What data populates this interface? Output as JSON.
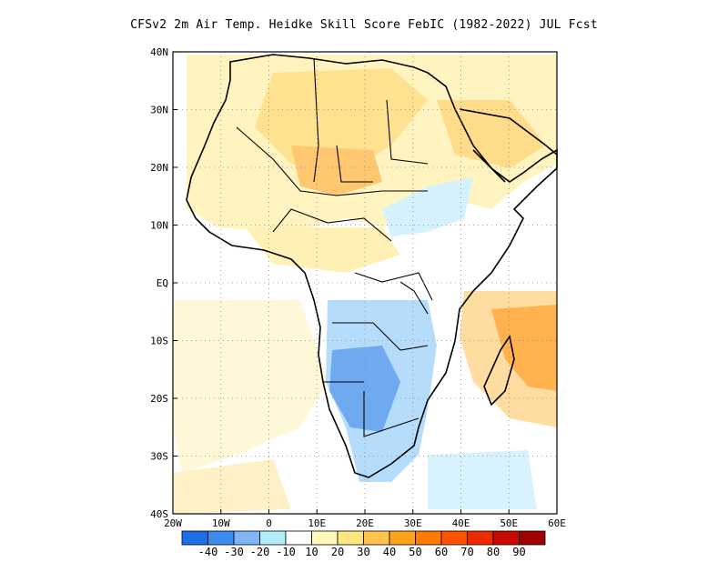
{
  "title": "CFSv2  2m Air Temp. Heidke Skill Score FebIC (1982-2022) JUL Fcst",
  "map": {
    "lon_range": [
      -20,
      60
    ],
    "lat_range": [
      -40,
      40
    ],
    "x_ticks": [
      "20W",
      "10W",
      "0",
      "10E",
      "20E",
      "30E",
      "40E",
      "50E",
      "60E"
    ],
    "y_ticks": [
      "40N",
      "30N",
      "20N",
      "10N",
      "EQ",
      "10S",
      "20S",
      "30S",
      "40S"
    ],
    "grid": "dotted",
    "colors": {
      "land_outline": "#000000",
      "positive_light": "#ffeeb0",
      "positive_mid": "#ffd68a",
      "positive_strong": "#ffaa44",
      "negative_light": "#c8eefc",
      "negative_mid": "#8ec8f6",
      "negative_strong": "#4a90ea"
    }
  },
  "colorbar": {
    "colors": [
      "#1e6fe6",
      "#3c8cf0",
      "#7cb6f5",
      "#b3ecf9",
      "#ffffff",
      "#fffaba",
      "#ffe680",
      "#ffc34d",
      "#ffa31a",
      "#ff7a00",
      "#ff5200",
      "#f02a00",
      "#c80a00",
      "#a00000"
    ],
    "labels": [
      "-40",
      "-30",
      "-20",
      "-10",
      "10",
      "20",
      "30",
      "40",
      "50",
      "60",
      "70",
      "80",
      "90"
    ]
  }
}
